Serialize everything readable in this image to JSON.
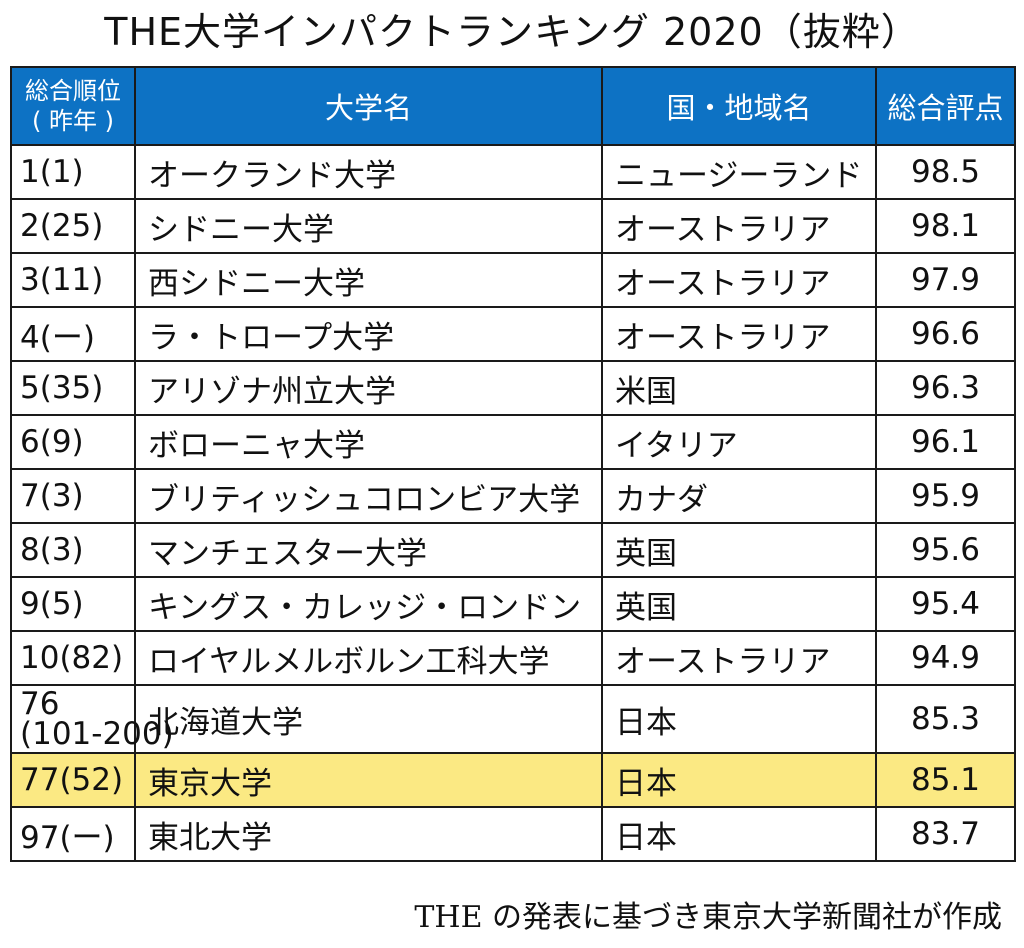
{
  "title": "THE大学インパクトランキング 2020（抜粋）",
  "headers": {
    "rank_line1": "総合順位",
    "rank_line2": "( 昨年 )",
    "university": "大学名",
    "country": "国・地域名",
    "score": "総合評点"
  },
  "rows": [
    {
      "rank": "1(1)",
      "university": "オークランド大学",
      "country": "ニュージーランド",
      "score": "98.5"
    },
    {
      "rank": "2(25)",
      "university": "シドニー大学",
      "country": "オーストラリア",
      "score": "98.1"
    },
    {
      "rank": "3(11)",
      "university": "西シドニー大学",
      "country": "オーストラリア",
      "score": "97.9"
    },
    {
      "rank": "4(ー)",
      "university": "ラ・トロープ大学",
      "country": "オーストラリア",
      "score": "96.6"
    },
    {
      "rank": "5(35)",
      "university": "アリゾナ州立大学",
      "country": "米国",
      "score": "96.3"
    },
    {
      "rank": "6(9)",
      "university": "ボローニャ大学",
      "country": "イタリア",
      "score": "96.1"
    },
    {
      "rank": "7(3)",
      "university": "ブリティッシュコロンビア大学",
      "country": "カナダ",
      "score": "95.9"
    },
    {
      "rank": "8(3)",
      "university": "マンチェスター大学",
      "country": "英国",
      "score": "95.6"
    },
    {
      "rank": "9(5)",
      "university": "キングス・カレッジ・ロンドン",
      "country": "英国",
      "score": "95.4"
    },
    {
      "rank": "10(82)",
      "university": "ロイヤルメルボルン工科大学",
      "country": "オーストラリア",
      "score": "94.9"
    },
    {
      "rank_line1": "76",
      "rank_line2": "(101-200)",
      "university": "北海道大学",
      "country": "日本",
      "score": "85.3"
    },
    {
      "rank": "77(52)",
      "university": "東京大学",
      "country": "日本",
      "score": "85.1",
      "highlighted": true
    },
    {
      "rank": "97(ー)",
      "university": "東北大学",
      "country": "日本",
      "score": "83.7"
    }
  ],
  "footer": "THE の発表に基づき東京大学新聞社が作成",
  "colors": {
    "header_bg": "#0d72c4",
    "header_text": "#ffffff",
    "highlight_bg": "#fbe983",
    "border": "#1a1a1a"
  }
}
